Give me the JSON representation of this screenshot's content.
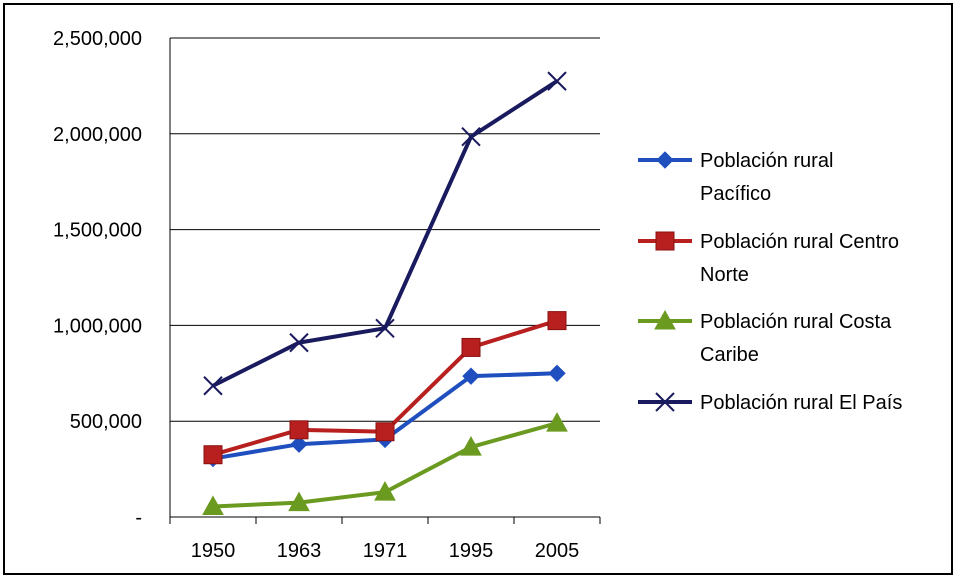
{
  "chart_data": {
    "type": "line",
    "title": "",
    "xlabel": "",
    "ylabel": "",
    "categories": [
      "1950",
      "1963",
      "1971",
      "1995",
      "2005"
    ],
    "y_ticks": [
      "-",
      "500,000",
      "1,000,000",
      "1,500,000",
      "2,000,000",
      "2,500,000"
    ],
    "y_tick_values": [
      0,
      500000,
      1000000,
      1500000,
      2000000,
      2500000
    ],
    "ylim": [
      0,
      2500000
    ],
    "grid": true,
    "legend_position": "right",
    "series": [
      {
        "name_lines": [
          "Población rural",
          "Pacífico"
        ],
        "color": "#1f4fbf",
        "marker": "diamond",
        "values": [
          305000,
          380000,
          405000,
          735000,
          750000
        ]
      },
      {
        "name_lines": [
          "Población rural Centro",
          "Norte"
        ],
        "color": "#b82020",
        "marker": "square",
        "values": [
          325000,
          455000,
          445000,
          885000,
          1025000
        ]
      },
      {
        "name_lines": [
          "Población rural Costa",
          "Caribe"
        ],
        "color": "#6a9a1f",
        "marker": "triangle",
        "values": [
          55000,
          75000,
          130000,
          365000,
          490000
        ]
      },
      {
        "name_lines": [
          "Población rural El País"
        ],
        "color": "#1a1a5e",
        "marker": "x",
        "values": [
          685000,
          910000,
          985000,
          1985000,
          2275000
        ]
      }
    ]
  }
}
